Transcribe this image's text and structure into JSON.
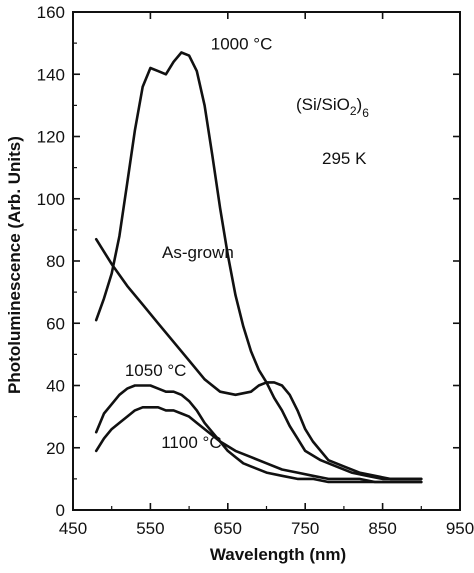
{
  "chart_data": {
    "type": "line",
    "xlabel": "Wavelength (nm)",
    "ylabel": "Photoluminescence (Arb. Units)",
    "xlim": [
      450,
      950
    ],
    "ylim": [
      0,
      160
    ],
    "xticks": [
      450,
      550,
      650,
      750,
      850,
      950
    ],
    "yticks": [
      0,
      20,
      40,
      60,
      80,
      100,
      120,
      140,
      160
    ],
    "grid": false,
    "legend": "none",
    "annotations": {
      "sample": "(Si/SiO2)6",
      "sample_base": "(Si/SiO",
      "sample_sub2": "2",
      "sample_close": ")",
      "sample_sub6": "6",
      "temperature": "295 K"
    },
    "series": [
      {
        "name": "1000 °C",
        "x": [
          480,
          490,
          500,
          510,
          520,
          530,
          540,
          550,
          560,
          570,
          580,
          590,
          600,
          610,
          620,
          630,
          640,
          650,
          660,
          670,
          680,
          690,
          700,
          710,
          720,
          730,
          740,
          750,
          770,
          790,
          810,
          830,
          850,
          870,
          890,
          900
        ],
        "y": [
          61,
          68,
          76,
          88,
          105,
          122,
          136,
          142,
          141,
          140,
          144,
          147,
          146,
          141,
          130,
          114,
          97,
          82,
          69,
          59,
          51,
          45,
          41,
          36,
          32,
          27,
          23,
          19,
          16,
          14,
          12,
          11,
          10,
          10,
          10,
          10
        ]
      },
      {
        "name": "As-grown",
        "x": [
          480,
          500,
          520,
          540,
          560,
          580,
          600,
          620,
          640,
          660,
          680,
          690,
          700,
          710,
          720,
          730,
          740,
          750,
          760,
          780,
          800,
          820,
          840,
          860,
          880,
          900
        ],
        "y": [
          87,
          79,
          72,
          66,
          60,
          54,
          48,
          42,
          38,
          37,
          38,
          40,
          41,
          41,
          40,
          37,
          32,
          26,
          22,
          16,
          14,
          12,
          11,
          10,
          10,
          10
        ]
      },
      {
        "name": "1050 °C",
        "x": [
          480,
          490,
          500,
          510,
          520,
          530,
          540,
          550,
          560,
          570,
          580,
          590,
          600,
          610,
          620,
          630,
          640,
          650,
          660,
          670,
          680,
          700,
          720,
          740,
          760,
          780,
          800,
          820,
          840,
          860,
          880,
          900
        ],
        "y": [
          25,
          31,
          34,
          37,
          39,
          40,
          40,
          40,
          39,
          38,
          38,
          37,
          35,
          32,
          28,
          25,
          22,
          19,
          17,
          15,
          14,
          12,
          11,
          10,
          10,
          9,
          9,
          9,
          9,
          9,
          9,
          9
        ]
      },
      {
        "name": "1100 °C",
        "x": [
          480,
          490,
          500,
          510,
          520,
          530,
          540,
          550,
          560,
          570,
          580,
          590,
          600,
          610,
          620,
          640,
          660,
          680,
          700,
          720,
          740,
          760,
          780,
          800,
          820,
          840,
          860,
          880,
          900
        ],
        "y": [
          19,
          23,
          26,
          28,
          30,
          32,
          33,
          33,
          33,
          32,
          32,
          31,
          30,
          28,
          26,
          22,
          19,
          17,
          15,
          13,
          12,
          11,
          10,
          10,
          10,
          9,
          9,
          9,
          9
        ]
      }
    ]
  }
}
